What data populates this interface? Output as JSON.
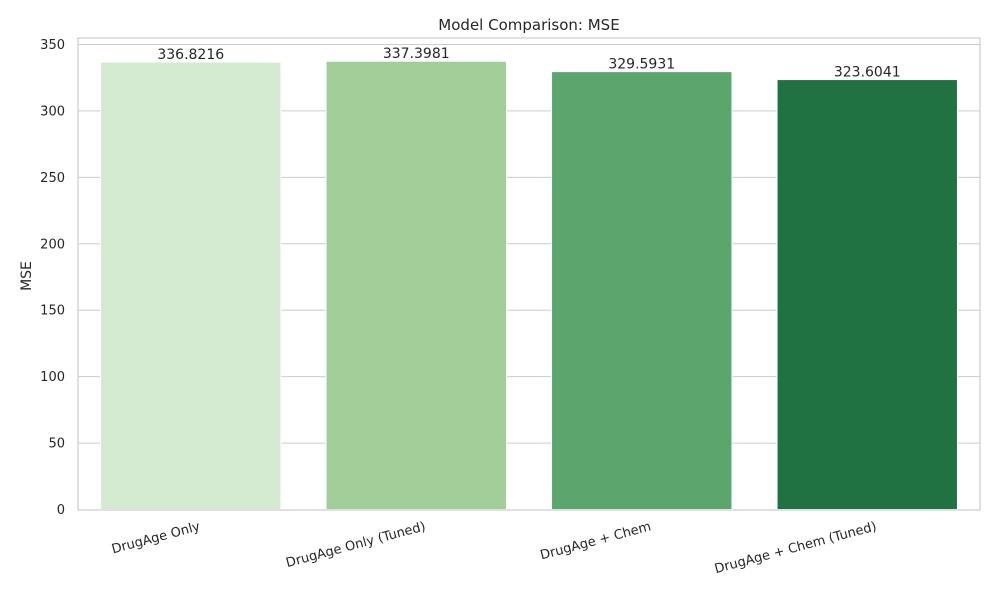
{
  "chart_data": {
    "type": "bar",
    "title": "Model Comparison: MSE",
    "xlabel": "",
    "ylabel": "MSE",
    "categories": [
      "DrugAge Only",
      "DrugAge Only (Tuned)",
      "DrugAge + Chem",
      "DrugAge + Chem (Tuned)"
    ],
    "values": [
      336.8216,
      337.3981,
      329.5931,
      323.6041
    ],
    "data_labels": [
      "336.8216",
      "337.3981",
      "329.5931",
      "323.6041"
    ],
    "colors": [
      "#d5ebd1",
      "#a0cd98",
      "#5aa66c",
      "#217242"
    ],
    "ylim": [
      0,
      350
    ],
    "yticks": [
      0,
      50,
      100,
      150,
      200,
      250,
      300,
      350
    ],
    "grid": true,
    "legend": "none",
    "xtick_rotation_deg": -15
  }
}
